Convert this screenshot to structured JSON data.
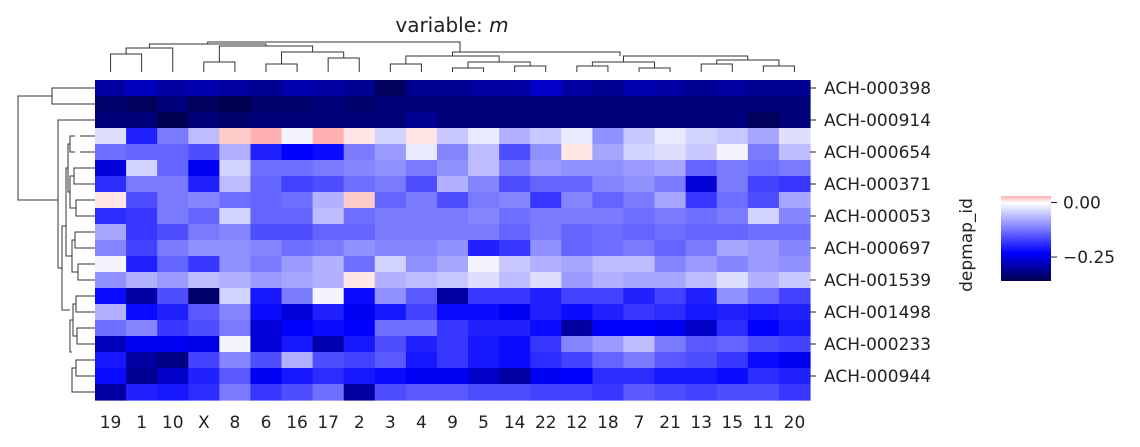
{
  "chart_data": {
    "type": "heatmap",
    "title_prefix": "variable: ",
    "title_var": "m",
    "ylabel": "depmap_id",
    "columns": [
      "19",
      "1",
      "10",
      "X",
      "8",
      "6",
      "16",
      "17",
      "2",
      "3",
      "4",
      "9",
      "5",
      "14",
      "22",
      "12",
      "18",
      "7",
      "21",
      "13",
      "15",
      "11",
      "20"
    ],
    "row_tick_labels": [
      "ACH-000398",
      "ACH-000914",
      "ACH-000654",
      "ACH-000371",
      "ACH-000053",
      "ACH-000697",
      "ACH-001539",
      "ACH-001498",
      "ACH-000233",
      "ACH-000944"
    ],
    "colorbar": {
      "vmin": -0.36,
      "vmax": 0.03,
      "ticks": [
        0.0,
        -0.25
      ],
      "tick_labels": [
        "0.00",
        "−0.25"
      ]
    },
    "values": [
      [
        -0.3,
        -0.28,
        -0.3,
        -0.29,
        -0.3,
        -0.31,
        -0.29,
        -0.3,
        -0.31,
        -0.35,
        -0.31,
        -0.31,
        -0.3,
        -0.3,
        -0.27,
        -0.3,
        -0.31,
        -0.29,
        -0.3,
        -0.31,
        -0.3,
        -0.31,
        -0.31
      ],
      [
        -0.34,
        -0.35,
        -0.33,
        -0.35,
        -0.36,
        -0.34,
        -0.34,
        -0.33,
        -0.34,
        -0.33,
        -0.33,
        -0.33,
        -0.33,
        -0.33,
        -0.33,
        -0.33,
        -0.33,
        -0.33,
        -0.33,
        -0.33,
        -0.33,
        -0.33,
        -0.33
      ],
      [
        -0.33,
        -0.33,
        -0.36,
        -0.33,
        -0.34,
        -0.33,
        -0.33,
        -0.33,
        -0.33,
        -0.33,
        -0.31,
        -0.33,
        -0.33,
        -0.33,
        -0.33,
        -0.33,
        -0.33,
        -0.33,
        -0.33,
        -0.33,
        -0.33,
        -0.35,
        -0.33
      ],
      [
        -0.03,
        -0.2,
        -0.12,
        -0.06,
        0.02,
        0.03,
        -0.01,
        0.03,
        0.01,
        -0.04,
        0.01,
        -0.05,
        -0.02,
        -0.07,
        -0.05,
        -0.02,
        -0.1,
        -0.05,
        -0.02,
        -0.04,
        -0.05,
        -0.08,
        -0.03
      ],
      [
        -0.13,
        -0.14,
        -0.14,
        -0.16,
        -0.07,
        -0.2,
        -0.23,
        -0.22,
        -0.12,
        -0.09,
        -0.02,
        -0.11,
        -0.06,
        -0.16,
        -0.1,
        0.01,
        -0.08,
        -0.04,
        -0.03,
        -0.05,
        -0.01,
        -0.12,
        -0.06
      ],
      [
        -0.26,
        -0.04,
        -0.14,
        -0.24,
        -0.04,
        -0.13,
        -0.13,
        -0.12,
        -0.11,
        -0.1,
        -0.12,
        -0.1,
        -0.06,
        -0.12,
        -0.09,
        -0.1,
        -0.1,
        -0.09,
        -0.08,
        -0.14,
        -0.12,
        -0.13,
        -0.12
      ],
      [
        -0.19,
        -0.12,
        -0.12,
        -0.2,
        -0.06,
        -0.14,
        -0.17,
        -0.16,
        -0.13,
        -0.12,
        -0.16,
        -0.07,
        -0.11,
        -0.16,
        -0.14,
        -0.14,
        -0.11,
        -0.1,
        -0.12,
        -0.26,
        -0.12,
        -0.17,
        -0.18
      ],
      [
        0.01,
        -0.16,
        -0.12,
        -0.11,
        -0.13,
        -0.14,
        -0.13,
        -0.07,
        0.02,
        -0.14,
        -0.12,
        -0.16,
        -0.12,
        -0.11,
        -0.18,
        -0.11,
        -0.14,
        -0.12,
        -0.08,
        -0.18,
        -0.13,
        -0.16,
        -0.08
      ],
      [
        -0.19,
        -0.18,
        -0.12,
        -0.14,
        -0.04,
        -0.14,
        -0.14,
        -0.06,
        -0.13,
        -0.12,
        -0.12,
        -0.12,
        -0.11,
        -0.13,
        -0.12,
        -0.12,
        -0.12,
        -0.13,
        -0.12,
        -0.13,
        -0.12,
        -0.04,
        -0.11
      ],
      [
        -0.08,
        -0.18,
        -0.16,
        -0.12,
        -0.11,
        -0.16,
        -0.16,
        -0.14,
        -0.14,
        -0.12,
        -0.12,
        -0.12,
        -0.12,
        -0.14,
        -0.12,
        -0.14,
        -0.13,
        -0.14,
        -0.13,
        -0.14,
        -0.14,
        -0.13,
        -0.13
      ],
      [
        -0.11,
        -0.17,
        -0.12,
        -0.1,
        -0.1,
        -0.11,
        -0.13,
        -0.12,
        -0.1,
        -0.11,
        -0.11,
        -0.1,
        -0.2,
        -0.18,
        -0.1,
        -0.14,
        -0.13,
        -0.12,
        -0.14,
        -0.12,
        -0.08,
        -0.09,
        -0.11
      ],
      [
        -0.01,
        -0.2,
        -0.14,
        -0.18,
        -0.1,
        -0.12,
        -0.09,
        -0.07,
        -0.13,
        -0.04,
        -0.1,
        -0.08,
        -0.01,
        -0.05,
        -0.07,
        -0.08,
        -0.06,
        -0.06,
        -0.11,
        -0.09,
        -0.11,
        -0.09,
        -0.1
      ],
      [
        -0.1,
        -0.07,
        -0.09,
        -0.06,
        -0.07,
        -0.09,
        -0.08,
        -0.07,
        0.01,
        -0.07,
        -0.06,
        -0.05,
        -0.03,
        -0.06,
        -0.03,
        -0.09,
        -0.07,
        -0.08,
        -0.08,
        -0.06,
        -0.03,
        -0.07,
        -0.05
      ],
      [
        -0.22,
        -0.3,
        -0.16,
        -0.34,
        -0.04,
        -0.21,
        -0.12,
        -0.01,
        -0.22,
        -0.1,
        -0.15,
        -0.3,
        -0.18,
        -0.18,
        -0.2,
        -0.17,
        -0.17,
        -0.2,
        -0.17,
        -0.2,
        -0.1,
        -0.13,
        -0.17
      ],
      [
        -0.07,
        -0.22,
        -0.2,
        -0.15,
        -0.11,
        -0.22,
        -0.26,
        -0.2,
        -0.24,
        -0.21,
        -0.17,
        -0.22,
        -0.22,
        -0.24,
        -0.2,
        -0.22,
        -0.2,
        -0.18,
        -0.19,
        -0.21,
        -0.2,
        -0.21,
        -0.2
      ],
      [
        -0.13,
        -0.11,
        -0.18,
        -0.16,
        -0.12,
        -0.26,
        -0.23,
        -0.22,
        -0.23,
        -0.13,
        -0.13,
        -0.18,
        -0.2,
        -0.2,
        -0.22,
        -0.3,
        -0.23,
        -0.23,
        -0.24,
        -0.27,
        -0.19,
        -0.23,
        -0.21
      ],
      [
        -0.28,
        -0.24,
        -0.24,
        -0.25,
        -0.01,
        -0.26,
        -0.21,
        -0.29,
        -0.21,
        -0.16,
        -0.2,
        -0.18,
        -0.21,
        -0.22,
        -0.18,
        -0.11,
        -0.09,
        -0.06,
        -0.12,
        -0.15,
        -0.14,
        -0.16,
        -0.17
      ],
      [
        -0.21,
        -0.3,
        -0.32,
        -0.17,
        -0.11,
        -0.16,
        -0.07,
        -0.16,
        -0.17,
        -0.15,
        -0.21,
        -0.18,
        -0.21,
        -0.22,
        -0.19,
        -0.17,
        -0.14,
        -0.12,
        -0.15,
        -0.16,
        -0.18,
        -0.22,
        -0.24
      ],
      [
        -0.22,
        -0.31,
        -0.27,
        -0.2,
        -0.15,
        -0.24,
        -0.21,
        -0.19,
        -0.21,
        -0.22,
        -0.24,
        -0.24,
        -0.27,
        -0.3,
        -0.24,
        -0.23,
        -0.19,
        -0.19,
        -0.21,
        -0.21,
        -0.22,
        -0.19,
        -0.2
      ],
      [
        -0.3,
        -0.2,
        -0.21,
        -0.19,
        -0.12,
        -0.18,
        -0.16,
        -0.13,
        -0.3,
        -0.16,
        -0.15,
        -0.15,
        -0.16,
        -0.16,
        -0.17,
        -0.17,
        -0.18,
        -0.15,
        -0.16,
        -0.17,
        -0.16,
        -0.16,
        -0.18
      ]
    ]
  }
}
